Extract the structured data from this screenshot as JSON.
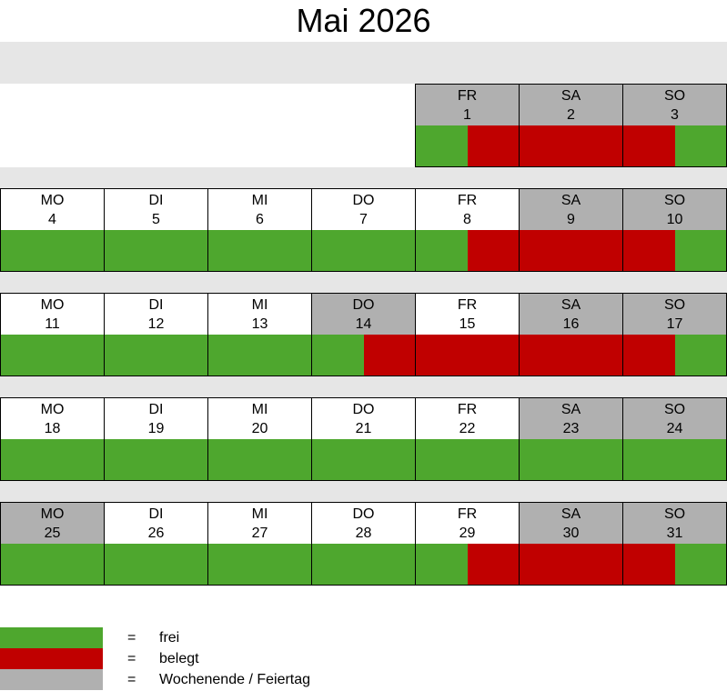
{
  "title": "Mai 2026",
  "colors": {
    "frei": "#4ea72e",
    "belegt": "#c00000",
    "weekend": "#b0b0b0"
  },
  "legend": [
    {
      "color": "#4ea72e",
      "eq": "=",
      "label": "frei"
    },
    {
      "color": "#c00000",
      "eq": "=",
      "label": "belegt"
    },
    {
      "color": "#b0b0b0",
      "eq": "=",
      "label": "Wochenende / Feiertag"
    }
  ],
  "weeks": [
    [
      null,
      null,
      null,
      null,
      {
        "dn": "FR",
        "d": "1",
        "we": true,
        "am": "frei",
        "pm": "belegt"
      },
      {
        "dn": "SA",
        "d": "2",
        "we": true,
        "am": "belegt",
        "pm": "belegt"
      },
      {
        "dn": "SO",
        "d": "3",
        "we": true,
        "am": "belegt",
        "pm": "frei"
      }
    ],
    [
      {
        "dn": "MO",
        "d": "4",
        "we": false,
        "am": "frei",
        "pm": "frei"
      },
      {
        "dn": "DI",
        "d": "5",
        "we": false,
        "am": "frei",
        "pm": "frei"
      },
      {
        "dn": "MI",
        "d": "6",
        "we": false,
        "am": "frei",
        "pm": "frei"
      },
      {
        "dn": "DO",
        "d": "7",
        "we": false,
        "am": "frei",
        "pm": "frei"
      },
      {
        "dn": "FR",
        "d": "8",
        "we": false,
        "am": "frei",
        "pm": "belegt"
      },
      {
        "dn": "SA",
        "d": "9",
        "we": true,
        "am": "belegt",
        "pm": "belegt"
      },
      {
        "dn": "SO",
        "d": "10",
        "we": true,
        "am": "belegt",
        "pm": "frei"
      }
    ],
    [
      {
        "dn": "MO",
        "d": "11",
        "we": false,
        "am": "frei",
        "pm": "frei"
      },
      {
        "dn": "DI",
        "d": "12",
        "we": false,
        "am": "frei",
        "pm": "frei"
      },
      {
        "dn": "MI",
        "d": "13",
        "we": false,
        "am": "frei",
        "pm": "frei"
      },
      {
        "dn": "DO",
        "d": "14",
        "we": true,
        "am": "frei",
        "pm": "belegt"
      },
      {
        "dn": "FR",
        "d": "15",
        "we": false,
        "am": "belegt",
        "pm": "belegt"
      },
      {
        "dn": "SA",
        "d": "16",
        "we": true,
        "am": "belegt",
        "pm": "belegt"
      },
      {
        "dn": "SO",
        "d": "17",
        "we": true,
        "am": "belegt",
        "pm": "frei"
      }
    ],
    [
      {
        "dn": "MO",
        "d": "18",
        "we": false,
        "am": "frei",
        "pm": "frei"
      },
      {
        "dn": "DI",
        "d": "19",
        "we": false,
        "am": "frei",
        "pm": "frei"
      },
      {
        "dn": "MI",
        "d": "20",
        "we": false,
        "am": "frei",
        "pm": "frei"
      },
      {
        "dn": "DO",
        "d": "21",
        "we": false,
        "am": "frei",
        "pm": "frei"
      },
      {
        "dn": "FR",
        "d": "22",
        "we": false,
        "am": "frei",
        "pm": "frei"
      },
      {
        "dn": "SA",
        "d": "23",
        "we": true,
        "am": "frei",
        "pm": "frei"
      },
      {
        "dn": "SO",
        "d": "24",
        "we": true,
        "am": "frei",
        "pm": "frei"
      }
    ],
    [
      {
        "dn": "MO",
        "d": "25",
        "we": true,
        "am": "frei",
        "pm": "frei"
      },
      {
        "dn": "DI",
        "d": "26",
        "we": false,
        "am": "frei",
        "pm": "frei"
      },
      {
        "dn": "MI",
        "d": "27",
        "we": false,
        "am": "frei",
        "pm": "frei"
      },
      {
        "dn": "DO",
        "d": "28",
        "we": false,
        "am": "frei",
        "pm": "frei"
      },
      {
        "dn": "FR",
        "d": "29",
        "we": false,
        "am": "frei",
        "pm": "belegt"
      },
      {
        "dn": "SA",
        "d": "30",
        "we": true,
        "am": "belegt",
        "pm": "belegt"
      },
      {
        "dn": "SO",
        "d": "31",
        "we": true,
        "am": "belegt",
        "pm": "frei"
      }
    ]
  ]
}
